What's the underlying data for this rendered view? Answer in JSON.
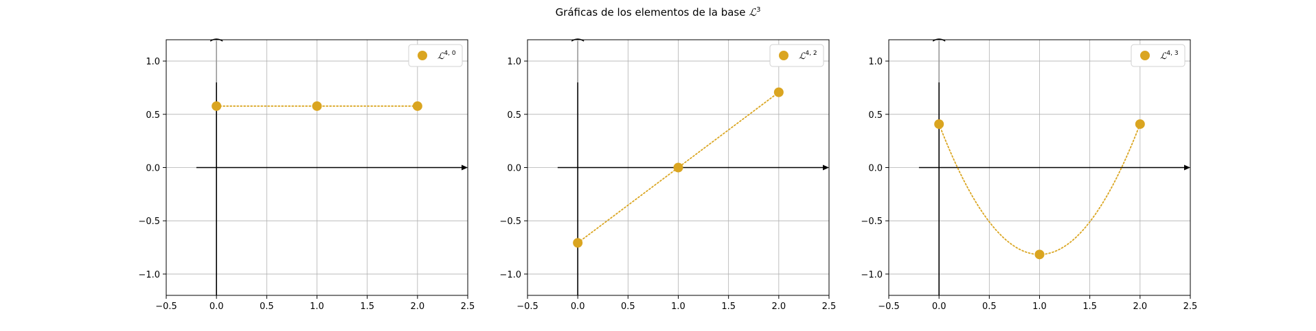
{
  "figure": {
    "title_text": "Gráficas de los elementos de la base ",
    "title_symbol": "ℒ",
    "title_superscript": "3"
  },
  "chart_data": [
    {
      "type": "line",
      "legend": "ℒ",
      "legend_superscript": "4, 0",
      "legend_placement": "top-right",
      "x": [
        0,
        1,
        2
      ],
      "y": [
        0.577,
        0.577,
        0.577
      ],
      "curve": "linear",
      "xlim": [
        -0.5,
        2.5
      ],
      "ylim": [
        -1.2,
        1.2
      ],
      "xticks": [
        "−0.5",
        "0.0",
        "0.5",
        "1.0",
        "1.5",
        "2.0",
        "2.5"
      ],
      "yticks": [
        "−1.0",
        "−0.5",
        "0.0",
        "0.5",
        "1.0"
      ],
      "grid": true,
      "color": "#DAA520"
    },
    {
      "type": "line",
      "legend": "ℒ",
      "legend_superscript": "4, 2",
      "legend_placement": "top-right",
      "x": [
        0,
        1,
        2
      ],
      "y": [
        -0.707,
        0.0,
        0.707
      ],
      "curve": "linear",
      "xlim": [
        -0.5,
        2.5
      ],
      "ylim": [
        -1.2,
        1.2
      ],
      "xticks": [
        "−0.5",
        "0.0",
        "0.5",
        "1.0",
        "1.5",
        "2.0",
        "2.5"
      ],
      "yticks": [
        "−1.0",
        "−0.5",
        "0.0",
        "0.5",
        "1.0"
      ],
      "grid": true,
      "color": "#DAA520"
    },
    {
      "type": "line",
      "legend": "ℒ",
      "legend_superscript": "4, 3",
      "legend_placement": "top-right",
      "x": [
        0,
        1,
        2
      ],
      "y": [
        0.408,
        -0.816,
        0.408
      ],
      "curve": "quadratic",
      "xlim": [
        -0.5,
        2.5
      ],
      "ylim": [
        -1.2,
        1.2
      ],
      "xticks": [
        "−0.5",
        "0.0",
        "0.5",
        "1.0",
        "1.5",
        "2.0",
        "2.5"
      ],
      "yticks": [
        "−1.0",
        "−0.5",
        "0.0",
        "0.5",
        "1.0"
      ],
      "grid": true,
      "color": "#DAA520"
    }
  ]
}
